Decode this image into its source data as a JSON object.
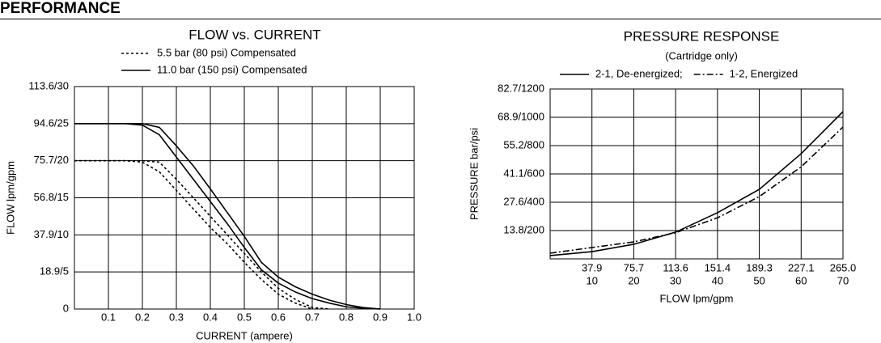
{
  "header": {
    "title": "PERFORMANCE"
  },
  "chart_data": [
    {
      "type": "line",
      "title": "FLOW vs. CURRENT",
      "x_label": "CURRENT (ampere)",
      "y_label": "FLOW lpm/gpm",
      "xlim": [
        0,
        1
      ],
      "ylim": [
        0,
        30
      ],
      "xticks": [
        0.1,
        0.2,
        0.3,
        0.4,
        0.5,
        0.6,
        0.7,
        0.8,
        0.9,
        {
          "value": 1,
          "label": "1.0"
        }
      ],
      "yticks": [
        0,
        {
          "value": 5,
          "label": "18.9/5"
        },
        {
          "value": 10,
          "label": "37.9/10"
        },
        {
          "value": 15,
          "label": "56.8/15"
        },
        {
          "value": 20,
          "label": "75.7/20"
        },
        {
          "value": 25,
          "label": "94.6/25"
        },
        {
          "value": 30,
          "label": "113.6/30"
        }
      ],
      "grid": true,
      "x": [
        0,
        0.05,
        0.1,
        0.15,
        0.2,
        0.25,
        0.3,
        0.35,
        0.4,
        0.45,
        0.5,
        0.55,
        0.6,
        0.65,
        0.7,
        0.75,
        0.8,
        0.85,
        0.9
      ],
      "series": [
        {
          "name": "5.5 bar (80 psi) Compensated",
          "color": "#000000",
          "dash": "dashed",
          "values": [
            20,
            20,
            20,
            20,
            20,
            19.8,
            17.5,
            15,
            12.5,
            10,
            7.5,
            5,
            2.8,
            1.3,
            0.2,
            0,
            null,
            null,
            null
          ],
          "values_low": [
            20,
            20,
            20,
            20,
            19.8,
            18.5,
            16,
            13.5,
            11,
            8.8,
            6.3,
            4,
            2,
            0.8,
            0,
            null,
            null,
            null,
            null
          ]
        },
        {
          "name": "11.0 bar (150 psi) Compensated",
          "color": "#000000",
          "dash": "solid",
          "values": [
            25,
            25,
            25,
            25,
            25,
            24.5,
            22,
            19.3,
            16.2,
            13,
            9.8,
            6.3,
            4.3,
            3,
            2,
            1.2,
            0.6,
            0.2,
            0
          ],
          "values_low": [
            25,
            25,
            25,
            25,
            24.8,
            23.5,
            20.5,
            17.5,
            14.5,
            11.5,
            8.3,
            5.3,
            3.5,
            2.3,
            1.4,
            0.8,
            0.3,
            0.1,
            0
          ]
        }
      ]
    },
    {
      "type": "line",
      "title": "PRESSURE RESPONSE",
      "subtitle": "(Cartridge only)",
      "x_label": "FLOW lpm/gpm",
      "y_label": "PRESSURE bar/psi",
      "xlim": [
        0,
        70
      ],
      "ylim": [
        0,
        1200
      ],
      "xticks": [
        10,
        20,
        30,
        40,
        50,
        60,
        70
      ],
      "xticks_lpm": [
        {
          "value": 10,
          "label": "37.9"
        },
        {
          "value": 20,
          "label": "75.7"
        },
        {
          "value": 30,
          "label": "113.6"
        },
        {
          "value": 40,
          "label": "151.4"
        },
        {
          "value": 50,
          "label": "189.3"
        },
        {
          "value": 60,
          "label": "227.1"
        },
        {
          "value": 70,
          "label": "265.0"
        }
      ],
      "yticks": [
        {
          "value": 200,
          "label": "13.8/200"
        },
        {
          "value": 400,
          "label": "27.6/400"
        },
        {
          "value": 600,
          "label": "41.1/600"
        },
        {
          "value": 800,
          "label": "55.2/800"
        },
        {
          "value": 1000,
          "label": "68.9/1000"
        },
        {
          "value": 1200,
          "label": "82.7/1200"
        }
      ],
      "grid": true,
      "x": [
        0,
        10,
        20,
        30,
        40,
        50,
        60,
        70
      ],
      "series": [
        {
          "name": "2-1, De-energized;",
          "color": "#000000",
          "dash": "solid",
          "values": [
            23,
            51,
            103,
            189,
            326,
            491,
            743,
            1040
          ]
        },
        {
          "name": "1-2, Energized",
          "color": "#000000",
          "dash": "dashdot",
          "values": [
            40,
            80,
            120,
            185,
            290,
            440,
            650,
            931
          ]
        }
      ]
    }
  ]
}
